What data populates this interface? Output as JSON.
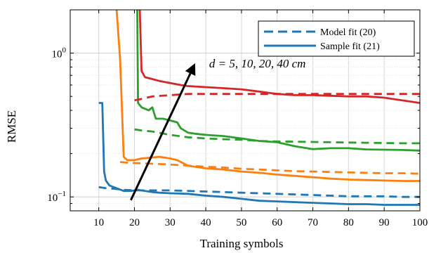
{
  "chart_data": {
    "type": "line",
    "xlabel": "Training symbols",
    "ylabel": "RMSE",
    "xlim": [
      2,
      100
    ],
    "ylim": [
      0.08,
      2.0
    ],
    "yscale": "log",
    "grid": true,
    "legend_position": "top-right",
    "xticks": [
      10,
      20,
      30,
      40,
      50,
      60,
      70,
      80,
      90,
      100
    ],
    "yticks": [
      {
        "value": 0.1,
        "base": "10",
        "exp": "−1"
      },
      {
        "value": 1.0,
        "base": "10",
        "exp": "0"
      }
    ],
    "legend": [
      {
        "label": "Model fit (20)",
        "style": "dashed",
        "color": "#1f77b4"
      },
      {
        "label": "Sample fit (21)",
        "style": "solid",
        "color": "#1f77b4"
      }
    ],
    "annotation": {
      "text": "d = 5, 10, 20, 40 cm",
      "arrow_from": [
        19,
        0.095
      ],
      "arrow_to": [
        37,
        0.85
      ]
    },
    "series": [
      {
        "color": "#1f77b4",
        "style": "solid",
        "points": [
          [
            10,
            0.45
          ],
          [
            11,
            0.45
          ],
          [
            11.5,
            0.15
          ],
          [
            12,
            0.13
          ],
          [
            13,
            0.12
          ],
          [
            15,
            0.115
          ],
          [
            17,
            0.11
          ],
          [
            19,
            0.11
          ],
          [
            21,
            0.112
          ],
          [
            23,
            0.11
          ],
          [
            25,
            0.108
          ],
          [
            27,
            0.107
          ],
          [
            30,
            0.106
          ],
          [
            35,
            0.105
          ],
          [
            40,
            0.102
          ],
          [
            45,
            0.1
          ],
          [
            50,
            0.097
          ],
          [
            55,
            0.094
          ],
          [
            60,
            0.093
          ],
          [
            65,
            0.092
          ],
          [
            70,
            0.091
          ],
          [
            75,
            0.09
          ],
          [
            80,
            0.089
          ],
          [
            85,
            0.089
          ],
          [
            90,
            0.088
          ],
          [
            95,
            0.088
          ],
          [
            100,
            0.088
          ]
        ]
      },
      {
        "color": "#1f77b4",
        "style": "dashed",
        "points": [
          [
            10,
            0.117
          ],
          [
            12,
            0.115
          ],
          [
            14,
            0.114
          ],
          [
            17,
            0.112
          ],
          [
            20,
            0.111
          ],
          [
            25,
            0.111
          ],
          [
            30,
            0.111
          ],
          [
            35,
            0.11
          ],
          [
            40,
            0.109
          ],
          [
            45,
            0.108
          ],
          [
            50,
            0.107
          ],
          [
            55,
            0.106
          ],
          [
            60,
            0.105
          ],
          [
            65,
            0.104
          ],
          [
            70,
            0.103
          ],
          [
            75,
            0.102
          ],
          [
            80,
            0.101
          ],
          [
            85,
            0.101
          ],
          [
            90,
            0.101
          ],
          [
            95,
            0.1
          ],
          [
            100,
            0.1
          ]
        ]
      },
      {
        "color": "#ff7f0e",
        "style": "solid",
        "points": [
          [
            15,
            2.0
          ],
          [
            16,
            0.9
          ],
          [
            17,
            0.19
          ],
          [
            18,
            0.18
          ],
          [
            20,
            0.18
          ],
          [
            22,
            0.185
          ],
          [
            25,
            0.188
          ],
          [
            27,
            0.19
          ],
          [
            30,
            0.185
          ],
          [
            32,
            0.18
          ],
          [
            35,
            0.165
          ],
          [
            40,
            0.158
          ],
          [
            45,
            0.155
          ],
          [
            50,
            0.15
          ],
          [
            55,
            0.147
          ],
          [
            60,
            0.143
          ],
          [
            65,
            0.14
          ],
          [
            70,
            0.137
          ],
          [
            75,
            0.134
          ],
          [
            80,
            0.132
          ],
          [
            85,
            0.131
          ],
          [
            90,
            0.13
          ],
          [
            95,
            0.129
          ],
          [
            100,
            0.129
          ]
        ]
      },
      {
        "color": "#ff7f0e",
        "style": "dashed",
        "points": [
          [
            16,
            0.175
          ],
          [
            18,
            0.173
          ],
          [
            20,
            0.172
          ],
          [
            25,
            0.17
          ],
          [
            30,
            0.168
          ],
          [
            35,
            0.165
          ],
          [
            40,
            0.162
          ],
          [
            45,
            0.16
          ],
          [
            50,
            0.157
          ],
          [
            55,
            0.155
          ],
          [
            60,
            0.153
          ],
          [
            65,
            0.151
          ],
          [
            70,
            0.15
          ],
          [
            75,
            0.149
          ],
          [
            80,
            0.148
          ],
          [
            85,
            0.147
          ],
          [
            90,
            0.146
          ],
          [
            95,
            0.146
          ],
          [
            100,
            0.145
          ]
        ]
      },
      {
        "color": "#2ca02c",
        "style": "solid",
        "points": [
          [
            20.8,
            2.0
          ],
          [
            21,
            0.45
          ],
          [
            22,
            0.42
          ],
          [
            24,
            0.4
          ],
          [
            25,
            0.42
          ],
          [
            26,
            0.35
          ],
          [
            28,
            0.35
          ],
          [
            30,
            0.34
          ],
          [
            32,
            0.33
          ],
          [
            33,
            0.3
          ],
          [
            35,
            0.28
          ],
          [
            37,
            0.275
          ],
          [
            40,
            0.27
          ],
          [
            42,
            0.268
          ],
          [
            45,
            0.265
          ],
          [
            50,
            0.255
          ],
          [
            55,
            0.245
          ],
          [
            60,
            0.24
          ],
          [
            65,
            0.225
          ],
          [
            70,
            0.215
          ],
          [
            75,
            0.218
          ],
          [
            80,
            0.218
          ],
          [
            85,
            0.214
          ],
          [
            90,
            0.213
          ],
          [
            95,
            0.212
          ],
          [
            100,
            0.21
          ]
        ]
      },
      {
        "color": "#2ca02c",
        "style": "dashed",
        "points": [
          [
            20,
            0.295
          ],
          [
            22,
            0.29
          ],
          [
            25,
            0.285
          ],
          [
            30,
            0.27
          ],
          [
            35,
            0.26
          ],
          [
            40,
            0.255
          ],
          [
            45,
            0.252
          ],
          [
            50,
            0.25
          ],
          [
            55,
            0.245
          ],
          [
            60,
            0.243
          ],
          [
            65,
            0.242
          ],
          [
            70,
            0.241
          ],
          [
            75,
            0.24
          ],
          [
            80,
            0.239
          ],
          [
            85,
            0.238
          ],
          [
            90,
            0.237
          ],
          [
            95,
            0.236
          ],
          [
            100,
            0.236
          ]
        ]
      },
      {
        "color": "#d62728",
        "style": "solid",
        "points": [
          [
            21.5,
            2.0
          ],
          [
            22,
            0.75
          ],
          [
            23,
            0.68
          ],
          [
            25,
            0.66
          ],
          [
            27,
            0.64
          ],
          [
            30,
            0.62
          ],
          [
            33,
            0.6
          ],
          [
            35,
            0.59
          ],
          [
            40,
            0.58
          ],
          [
            45,
            0.57
          ],
          [
            50,
            0.56
          ],
          [
            55,
            0.54
          ],
          [
            60,
            0.52
          ],
          [
            65,
            0.51
          ],
          [
            70,
            0.51
          ],
          [
            75,
            0.505
          ],
          [
            80,
            0.5
          ],
          [
            85,
            0.5
          ],
          [
            90,
            0.49
          ],
          [
            95,
            0.47
          ],
          [
            100,
            0.45
          ]
        ]
      },
      {
        "color": "#d62728",
        "style": "dashed",
        "points": [
          [
            20,
            0.47
          ],
          [
            22,
            0.48
          ],
          [
            25,
            0.5
          ],
          [
            30,
            0.51
          ],
          [
            35,
            0.52
          ],
          [
            40,
            0.52
          ],
          [
            45,
            0.52
          ],
          [
            50,
            0.52
          ],
          [
            55,
            0.52
          ],
          [
            60,
            0.52
          ],
          [
            65,
            0.52
          ],
          [
            70,
            0.52
          ],
          [
            75,
            0.52
          ],
          [
            80,
            0.52
          ],
          [
            85,
            0.52
          ],
          [
            90,
            0.52
          ],
          [
            95,
            0.52
          ],
          [
            100,
            0.52
          ]
        ]
      }
    ]
  }
}
